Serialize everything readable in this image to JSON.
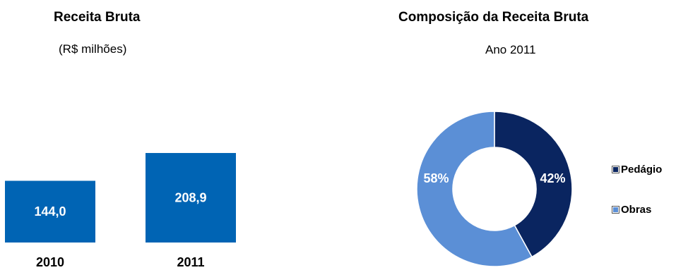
{
  "chart_data": [
    {
      "type": "bar",
      "title": "Receita Bruta",
      "subtitle": "(R$ milhões)",
      "categories": [
        "2010",
        "2011"
      ],
      "values": [
        144.0,
        208.9
      ],
      "value_labels": [
        "144,0",
        "208,9"
      ],
      "bar_color": "#0064B4",
      "label_color": "#ffffff",
      "grid": false
    },
    {
      "type": "pie",
      "variant": "donut",
      "title": "Composição da Receita Bruta",
      "subtitle": "Ano 2011",
      "labels": [
        "Pedágio",
        "Obras"
      ],
      "values": [
        42,
        58
      ],
      "value_labels": [
        "42%",
        "58%"
      ],
      "colors": [
        "#0A2560",
        "#5B8FD6"
      ],
      "legend_position": "right"
    }
  ]
}
